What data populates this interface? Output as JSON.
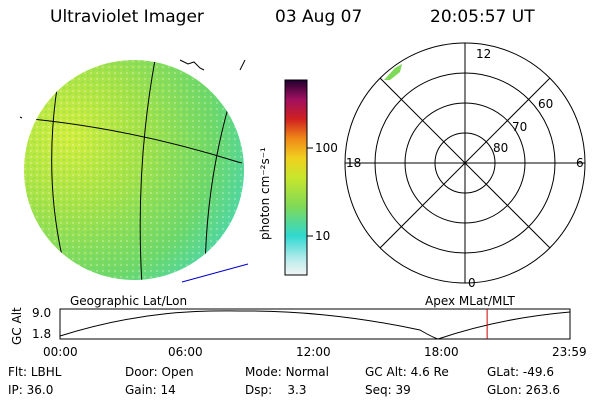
{
  "header": {
    "instrument": "Ultraviolet Imager",
    "date": "03 Aug 07",
    "time": "20:05:57 UT"
  },
  "colorbar": {
    "unit_label": "photon cm⁻²s⁻¹",
    "ticks": [
      "100",
      "10"
    ]
  },
  "polar": {
    "mlt_labels": [
      "12",
      "18",
      "6",
      "0"
    ],
    "lat_labels": [
      "60",
      "70",
      "80"
    ]
  },
  "panels": {
    "left_caption": "Geographic Lat/Lon",
    "right_caption": "Apex MLat/MLT"
  },
  "altitude_plot": {
    "ylabel": "GC Alt",
    "y_ticks": [
      "9.0",
      "1.8"
    ],
    "x_ticks": [
      "00:00",
      "06:00",
      "12:00",
      "18:00",
      "23:59"
    ],
    "current_time_fraction": 0.8375
  },
  "status": {
    "row1": [
      {
        "label": "Flt:",
        "value": "LBHL"
      },
      {
        "label": "Door:",
        "value": "Open"
      },
      {
        "label": "Mode:",
        "value": "Normal"
      },
      {
        "label": "GC Alt:",
        "value": "4.6 Re"
      },
      {
        "label": "GLat:",
        "value": "-49.6"
      }
    ],
    "row2": [
      {
        "label": "IP:",
        "value": "36.0"
      },
      {
        "label": "Gain:",
        "value": "14"
      },
      {
        "label": "Dsp:",
        "value": "3.3"
      },
      {
        "label": "Seq:",
        "value": "39"
      },
      {
        "label": "GLon:",
        "value": "263.6"
      }
    ]
  },
  "colors": {
    "earth_left": "#b8e63c",
    "earth_center": "#7ed957",
    "earth_edge": "#40d8c8",
    "time_marker": "#cc0000",
    "coast_line": "#0000cc"
  }
}
